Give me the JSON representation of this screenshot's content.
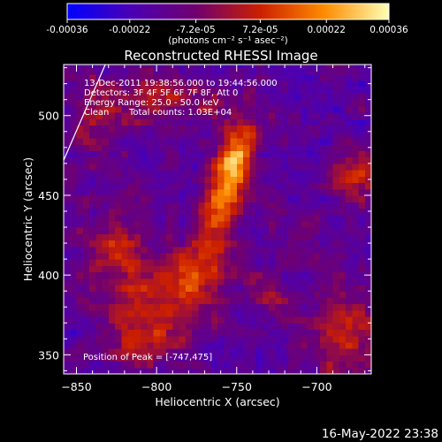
{
  "chart_data": {
    "type": "heatmap",
    "title": "Reconstructed RHESSI Image",
    "xlabel": "Heliocentric X (arcsec)",
    "ylabel": "Heliocentric Y (arcsec)",
    "xlim": [
      -858,
      -666
    ],
    "ylim": [
      338,
      532
    ],
    "x_ticks": [
      -850,
      -800,
      -750,
      -700
    ],
    "y_ticks": [
      350,
      400,
      450,
      500
    ],
    "colorbar": {
      "range": [
        -0.00036,
        0.00036
      ],
      "tick_values": [
        -0.00036,
        -0.00022,
        -7.2e-05,
        7.2e-05,
        0.00022,
        0.00036
      ],
      "tick_labels": [
        "-0.00036",
        "-0.00022",
        "-7.2e-05",
        "7.2e-05",
        "0.00022",
        "0.00036"
      ],
      "units_label": "(photons cm⁻² s⁻¹ asec⁻²)",
      "colors": [
        "#0000ff",
        "#4b00b4",
        "#700070",
        "#cc1f00",
        "#ff8c00",
        "#ffffb4"
      ]
    },
    "annotations": {
      "time_range": "13-Dec-2011 19:38:56.000 to 19:44:56.000",
      "detectors": "Detectors: 3F 4F 5F 6F 7F 8F, Att 0",
      "energy_range": "Energy Range: 25.0 - 50.0 keV",
      "method": "Clean",
      "total_counts": "Total counts: 1.03E+04",
      "peak": "Position of Peak = [-747,475]"
    },
    "peak_position": [
      -747,
      475
    ],
    "limb_line": [
      [
        -858,
        472
      ],
      [
        -832,
        532
      ]
    ],
    "sources": [
      {
        "x": -757,
        "y": 458,
        "sx": 12,
        "sy": 30,
        "rho": 0.65,
        "amp": 0.00036
      },
      {
        "x": -748,
        "y": 475,
        "sx": 8,
        "sy": 14,
        "rho": 0.4,
        "amp": 0.00012
      },
      {
        "x": -782,
        "y": 395,
        "sx": 18,
        "sy": 18,
        "rho": 0.3,
        "amp": 0.00024
      },
      {
        "x": -825,
        "y": 410,
        "sx": 16,
        "sy": 24,
        "rho": -0.2,
        "amp": 0.00019
      },
      {
        "x": -808,
        "y": 362,
        "sx": 18,
        "sy": 12,
        "rho": 0.0,
        "amp": 0.00017
      },
      {
        "x": -683,
        "y": 362,
        "sx": 16,
        "sy": 18,
        "rho": 0.1,
        "amp": 0.00023
      },
      {
        "x": -675,
        "y": 462,
        "sx": 10,
        "sy": 11,
        "rho": 0.0,
        "amp": 0.00022
      },
      {
        "x": -803,
        "y": 512,
        "sx": 16,
        "sy": 11,
        "rho": 0.0,
        "amp": 0.00018
      },
      {
        "x": -838,
        "y": 500,
        "sx": 10,
        "sy": 18,
        "rho": 0.0,
        "amp": 0.00016
      },
      {
        "x": -730,
        "y": 388,
        "sx": 10,
        "sy": 10,
        "rho": 0.0,
        "amp": 0.00011
      },
      {
        "x": -705,
        "y": 425,
        "sx": 9,
        "sy": 9,
        "rho": 0.0,
        "amp": 0.0001
      },
      {
        "x": -770,
        "y": 510,
        "sx": 10,
        "sy": 8,
        "rho": 0.0,
        "amp": 0.00011
      }
    ],
    "background_level": -0.00016,
    "noise_level": 0.00011
  },
  "footer": {
    "date_stamp": "16-May-2022 23:38"
  }
}
